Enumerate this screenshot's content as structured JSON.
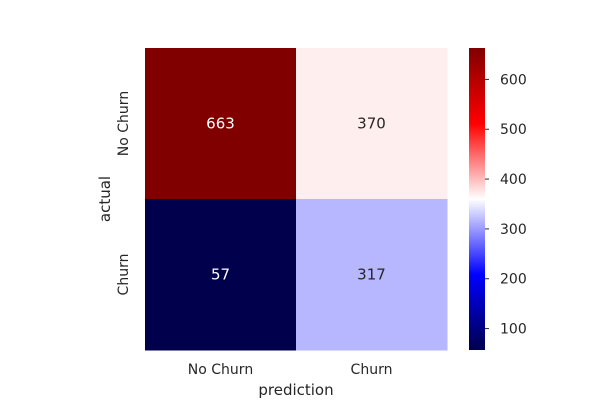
{
  "chart_data": {
    "type": "heatmap",
    "title": "",
    "xlabel": "prediction",
    "ylabel": "actual",
    "x_categories": [
      "No Churn",
      "Churn"
    ],
    "y_categories": [
      "No Churn",
      "Churn"
    ],
    "values": [
      [
        663,
        370
      ],
      [
        57,
        317
      ]
    ],
    "colormap": "seismic",
    "colorbar": {
      "range": [
        57,
        663
      ],
      "ticks": [
        100,
        200,
        300,
        400,
        500,
        600
      ]
    },
    "colors": {
      "low": "#00004c",
      "mid": "#ffffff",
      "high": "#800000"
    }
  }
}
